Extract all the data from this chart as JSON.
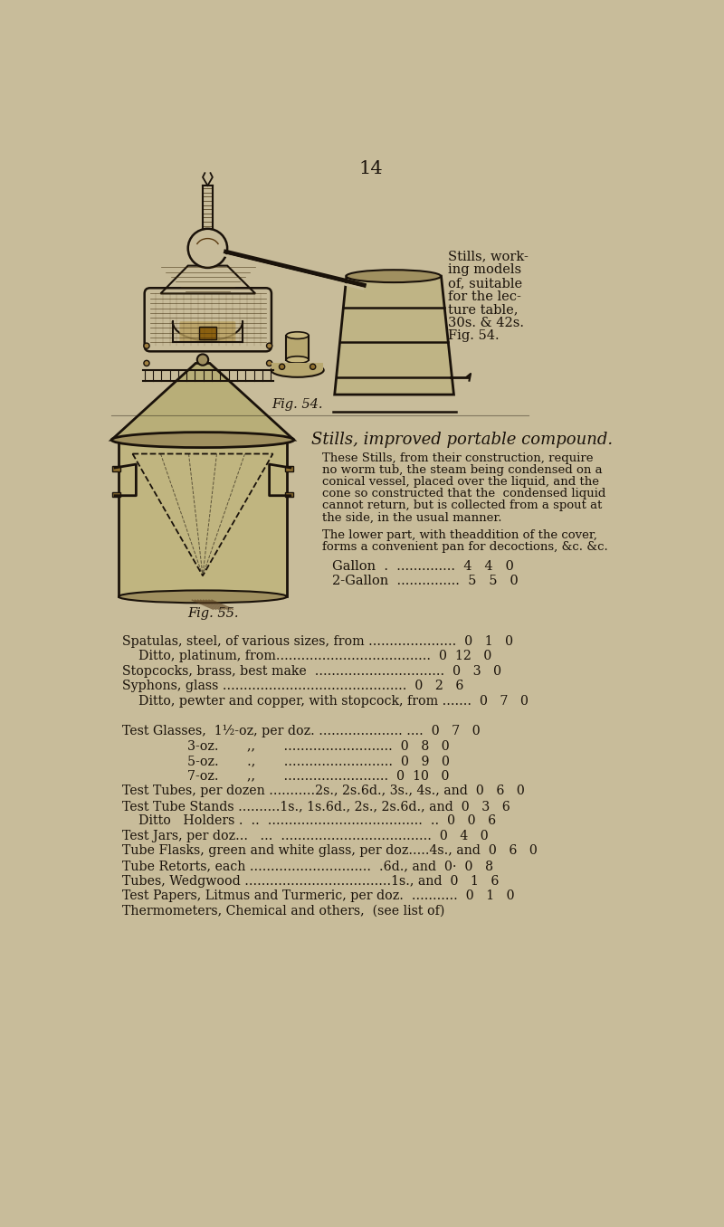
{
  "background_color": "#c8bc9a",
  "page_number": "14",
  "text_color": "#1a120a",
  "sidebar_lines": [
    "Stills, work-",
    "ing models",
    "of, suitable",
    "for the lec-",
    "ture table,",
    "30s. & 42s.",
    "Fig. 54."
  ],
  "heading": "Stills, improved portable compound.",
  "para1": "These Stills, from their construction, require\nno worm tub, the steam being condensed on a\nconical vessel, placed over the liquid, and the\ncone so constructed that the  condensed liquid\ncannot return, but is collected from a spout at\nthe side, in the usual manner.",
  "para2": "The lower part, with theaddition of the cover,\nforms a convenient pan for decoctions, &c. &c.",
  "gallon_row": "Gallon  .  ..............  4   4   0",
  "gallon2_row": "2-Gallon  ...............  5   5   0",
  "fig54_cap": "Fig. 54.",
  "fig55_cap": "Fig. 55.",
  "list_items": [
    "Spatulas, steel, of various sizes, from .....................  0   1   0",
    "    Ditto, platinum, from.....................................  0  12   0",
    "Stopcocks, brass, best make  ...............................  0   3   0",
    "Syphons, glass ............................................  0   2   6",
    "    Ditto, pewter and copper, with stopcock, from .......  0   7   0",
    "",
    "Test Glasses,  1½-oz, per doz. .................... ....  0   7   0",
    "                3-oz.       ,,       ..........................  0   8   0",
    "                5-oz.       .,       ..........................  0   9   0",
    "                7-oz.       ,,       .........................  0  10   0",
    "Test Tubes, per dozen ...........2s., 2s.6d., 3s., 4s., and  0   6   0",
    "Test Tube Stands ..........1s., 1s.6d., 2s., 2s.6d., and  0   3   6",
    "    Ditto   Holders .  ..  .....................................  ..  0   0   6",
    "Test Jars, per doz...   ...  ....................................  0   4   0",
    "Tube Flasks, green and white glass, per doz.....4s., and  0   6   0",
    "Tube Retorts, each .............................  .6d., and  0·  0   8",
    "Tubes, Wedgwood ...................................1s., and  0   1   6",
    "Test Papers, Litmus and Turmeric, per doz.  ...........  0   1   0",
    "Thermometers, Chemical and others,  (see list of)"
  ]
}
